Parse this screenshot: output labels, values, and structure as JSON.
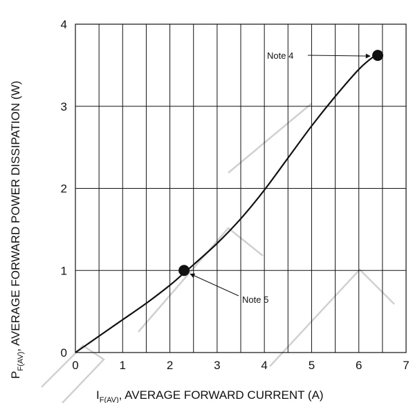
{
  "chart_data": {
    "type": "line",
    "xlabel_main": "I",
    "xlabel_sub": "F(AV)",
    "xlabel_rest": ", AVERAGE FORWARD CURRENT (A)",
    "ylabel_main": "P",
    "ylabel_sub": "F(AV)",
    "ylabel_rest": ", AVERAGE FORWARD POWER DISSIPATION (W)",
    "xlim": [
      0,
      7
    ],
    "ylim": [
      0,
      4
    ],
    "xticks": [
      "0",
      "1",
      "2",
      "3",
      "4",
      "5",
      "6",
      "7"
    ],
    "yticks": [
      "0",
      "1",
      "2",
      "3",
      "4"
    ],
    "grid_vertical_step": 0.5,
    "grid_horizontal_step": 1,
    "series": [
      {
        "x": [
          0,
          0.5,
          1.0,
          1.5,
          2.0,
          2.3,
          2.5,
          3.0,
          3.5,
          4.0,
          4.5,
          5.0,
          5.5,
          6.0,
          6.3,
          6.4
        ],
        "y": [
          0,
          0.2,
          0.4,
          0.6,
          0.82,
          0.97,
          1.07,
          1.33,
          1.63,
          1.98,
          2.37,
          2.76,
          3.12,
          3.45,
          3.6,
          3.62
        ]
      }
    ],
    "markers": [
      {
        "x": 2.3,
        "y": 1.0
      },
      {
        "x": 6.4,
        "y": 3.62
      }
    ],
    "annotations": [
      {
        "text": "Note 4"
      },
      {
        "text": "Note 5"
      }
    ]
  }
}
